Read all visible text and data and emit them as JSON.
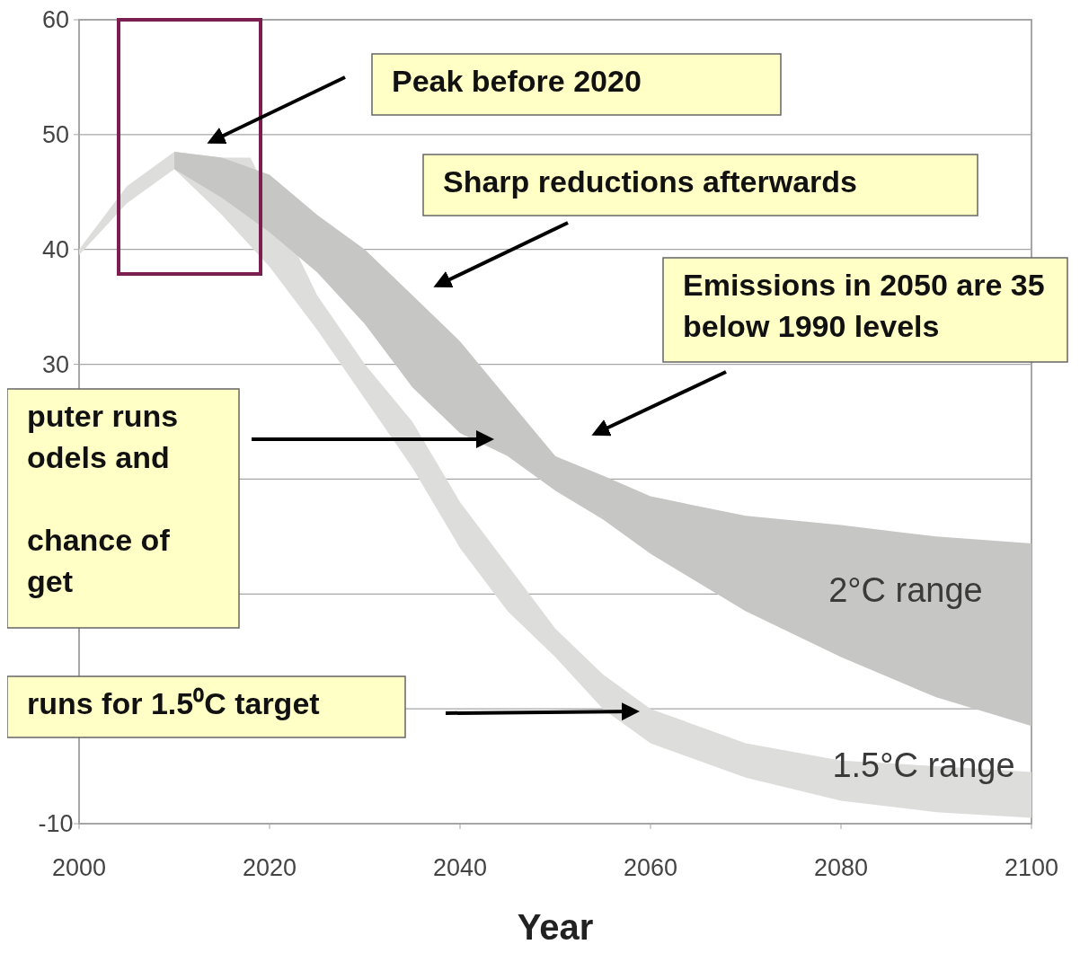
{
  "chart_data": {
    "type": "area",
    "xlabel": "Year",
    "series": [
      {
        "name": "1.5°C range",
        "color": "#dddddb",
        "x": [
          2000,
          2005,
          2010,
          2015,
          2018,
          2025,
          2030,
          2035,
          2040,
          2045,
          2050,
          2055,
          2060,
          2070,
          2080,
          2090,
          2100,
          2100,
          2090,
          2080,
          2070,
          2060,
          2055,
          2050,
          2045,
          2040,
          2035,
          2030,
          2025,
          2020,
          2015,
          2010,
          2005,
          2000
        ],
        "values": [
          40,
          45.5,
          48.5,
          48,
          48,
          36,
          30,
          25,
          18,
          12.5,
          7,
          3,
          0,
          -3,
          -4.5,
          -5,
          -5.5,
          -9.5,
          -9,
          -8,
          -6,
          -3,
          0,
          4.5,
          8.5,
          14,
          21,
          27,
          33,
          38.5,
          43,
          47,
          44,
          39.5
        ]
      },
      {
        "name": "2°C range",
        "color": "#c6c6c4",
        "x": [
          2010,
          2015,
          2020,
          2025,
          2030,
          2035,
          2040,
          2045,
          2050,
          2055,
          2060,
          2070,
          2080,
          2090,
          2100,
          2100,
          2090,
          2080,
          2070,
          2060,
          2055,
          2050,
          2045,
          2040,
          2035,
          2030,
          2025,
          2020,
          2015,
          2010
        ],
        "values": [
          48.5,
          48,
          46.5,
          43,
          40,
          36,
          32,
          27,
          22,
          20.3,
          18.5,
          16.8,
          16,
          15,
          14.4,
          -1.5,
          1,
          4.5,
          8.5,
          13.5,
          16.5,
          19,
          22,
          24,
          28,
          33.5,
          38,
          41.5,
          44.5,
          47
        ]
      }
    ],
    "xlim": [
      2000,
      2100
    ],
    "xticks": [
      2000,
      2020,
      2040,
      2060,
      2080,
      2100
    ],
    "ylim": [
      -10,
      60
    ],
    "yticks": [
      -10,
      {
        "value": 0,
        "label": null
      },
      {
        "value": 10,
        "label": null
      },
      {
        "value": 20,
        "label": null
      },
      30,
      40,
      50,
      60
    ],
    "grid": "y",
    "annotations": [
      "Peak before 2020",
      "Sharp reductions afterwards",
      "Emissions in 2050 are 35\nbelow 1990 levels",
      "puter runs\nodels and\n\nchance of\nget",
      "runs for 1.5⁰C target"
    ]
  }
}
